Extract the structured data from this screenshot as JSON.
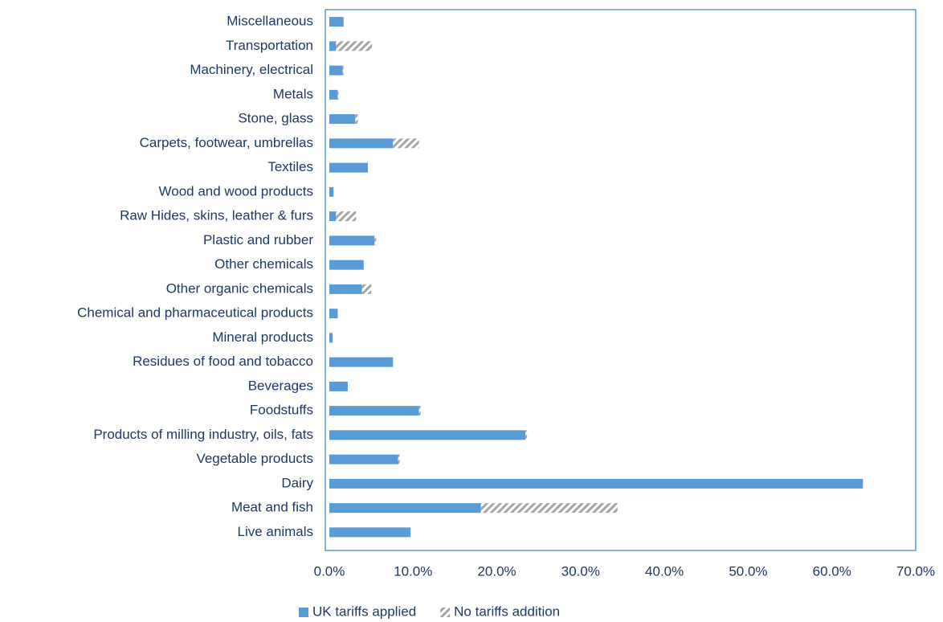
{
  "chart_data": {
    "type": "stacked-barh",
    "categories": [
      "Miscellaneous",
      "Transportation",
      "Machinery, electrical",
      "Metals",
      "Stone, glass",
      "Carpets, footwear, umbrellas",
      "Textiles",
      "Wood and wood products",
      "Raw Hides, skins, leather & furs",
      "Plastic and rubber",
      "Other chemicals",
      "Other organic chemicals",
      "Chemical and pharmaceutical products",
      "Mineral products",
      "Residues of food and tobacco",
      "Beverages",
      "Foodstuffs",
      "Products of milling industry, oils, fats",
      "Vegetable products",
      "Dairy",
      "Meat and fish",
      "Live animals"
    ],
    "series": [
      {
        "name": "UK tariffs applied",
        "color": "#5b9bd5",
        "values": [
          1.7,
          0.8,
          1.6,
          1.0,
          3.1,
          7.6,
          4.6,
          0.5,
          0.8,
          5.4,
          4.1,
          3.9,
          1.0,
          0.4,
          7.6,
          2.2,
          10.7,
          23.4,
          8.2,
          63.7,
          18.1,
          9.7
        ]
      },
      {
        "name": "No tariffs addition",
        "color": "#a5a5a5",
        "values": [
          0,
          4.3,
          0.1,
          0.1,
          0.3,
          3.1,
          0,
          0,
          2.4,
          0.2,
          0,
          1.1,
          0,
          0,
          0,
          0,
          0.2,
          0.2,
          0.2,
          0,
          16.3,
          0
        ]
      }
    ],
    "xlim": [
      0,
      70
    ],
    "xticks": [
      {
        "value": 0,
        "label": "0.0%"
      },
      {
        "value": 10,
        "label": "10.0%"
      },
      {
        "value": 20,
        "label": "20.0%"
      },
      {
        "value": 30,
        "label": "30.0%"
      },
      {
        "value": 40,
        "label": "40.0%"
      },
      {
        "value": 50,
        "label": "50.0%"
      },
      {
        "value": 60,
        "label": "60.0%"
      },
      {
        "value": 70,
        "label": "70.0%"
      }
    ],
    "legend": "bottom"
  }
}
